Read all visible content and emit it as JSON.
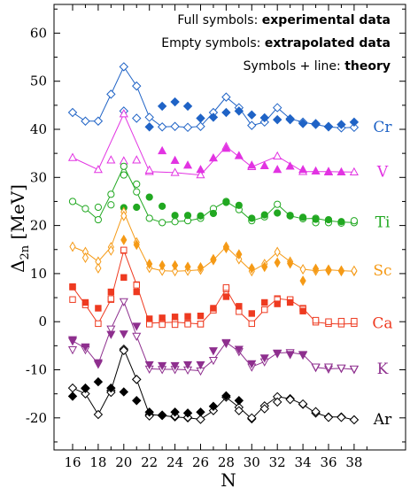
{
  "chart_data": {
    "type": "line",
    "xlabel": "N",
    "ylabel": "Δ",
    "ylabel_sub": "2n",
    "ylabel_unit": " [MeV]",
    "xlim": [
      15,
      39.5
    ],
    "ylim": [
      -25,
      65
    ],
    "xticks": [
      16,
      18,
      20,
      22,
      24,
      26,
      28,
      30,
      32,
      34,
      36,
      38
    ],
    "yticks": [
      -20,
      -10,
      0,
      10,
      20,
      30,
      40,
      50,
      60
    ],
    "legend": {
      "line1_normal": "Full symbols: ",
      "line1_bold": "experimental data",
      "line2_normal": "Empty symbols: ",
      "line2_bold": "extrapolated data",
      "line3_normal": "Symbols + line: ",
      "line3_bold": "theory"
    },
    "series": [
      {
        "name": "Cr",
        "color": "#1f63c6",
        "marker": "diamond",
        "theory": {
          "x": [
            16,
            17,
            18,
            19,
            20,
            21,
            22,
            23,
            24,
            25,
            26,
            27,
            28,
            29,
            30,
            31,
            32,
            33,
            34,
            35,
            36,
            37,
            38
          ],
          "y": [
            43.5,
            41.7,
            41.7,
            47.3,
            53,
            49,
            42.5,
            40.5,
            40.6,
            40.4,
            40.6,
            43.5,
            46.7,
            44.5,
            40.8,
            41.5,
            44.5,
            42.2,
            41.5,
            41,
            40.5,
            40.3,
            40.4
          ]
        },
        "experimental": {
          "x": [
            22,
            23,
            24,
            25,
            26,
            27,
            28,
            29,
            30,
            31,
            32,
            33,
            34,
            35,
            36,
            37,
            38
          ],
          "y": [
            40.5,
            44.8,
            45.7,
            44.8,
            42.3,
            42.5,
            43.5,
            43.8,
            43,
            42.4,
            42,
            42,
            41.2,
            41.2,
            40.6,
            41,
            41.5
          ]
        },
        "extrapolated": {
          "x": [
            20,
            21
          ],
          "y": [
            43.8,
            42.3
          ]
        }
      },
      {
        "name": "V",
        "color": "#e233e2",
        "marker": "triangle-up",
        "theory": {
          "x": [
            16,
            18,
            20,
            22,
            24,
            26,
            28,
            30,
            32,
            34,
            36,
            38
          ],
          "y": [
            34.1,
            31.6,
            43.2,
            31.2,
            31,
            30.5,
            36.4,
            32.2,
            34.4,
            31.2,
            31.2,
            31.1
          ]
        },
        "experimental": {
          "x": [
            23,
            24,
            25,
            26,
            27,
            28,
            29,
            30,
            31,
            32,
            33,
            34,
            35,
            36,
            37
          ],
          "y": [
            35.5,
            33.5,
            32.5,
            31.6,
            34,
            36,
            34.5,
            32.5,
            32.4,
            31.6,
            32.3,
            31.6,
            31.3,
            31.1,
            31.1
          ]
        },
        "extrapolated": {
          "x": [
            19,
            20,
            21,
            22
          ],
          "y": [
            33.6,
            33.4,
            33.6,
            31.5
          ]
        }
      },
      {
        "name": "Ti",
        "color": "#21a821",
        "marker": "circle",
        "theory": {
          "x": [
            16,
            17,
            18,
            19,
            20,
            21,
            22,
            23,
            24,
            25,
            26,
            27,
            28,
            29,
            30,
            31,
            32,
            33,
            34,
            35,
            36,
            37,
            38
          ],
          "y": [
            25,
            23.5,
            21.2,
            26.5,
            32.3,
            27,
            21.5,
            20.6,
            20.8,
            21,
            21.5,
            23.5,
            25,
            23.3,
            21,
            21.8,
            24.4,
            22,
            21.4,
            21.5,
            21,
            20.7,
            20.6
          ]
        },
        "experimental": {
          "x": [
            20,
            21,
            22,
            23,
            24,
            25,
            26,
            27,
            28,
            29,
            30,
            31,
            32,
            33,
            34,
            35,
            36,
            37
          ],
          "y": [
            23.7,
            23.8,
            25.9,
            24,
            22.1,
            22.1,
            22,
            22.5,
            24.8,
            24.2,
            21.5,
            22.2,
            22.6,
            22.1,
            21.7,
            21.3,
            21.2,
            20.8
          ]
        },
        "extrapolated": {
          "x": [
            18,
            19,
            20,
            21,
            35,
            36,
            37,
            38
          ],
          "y": [
            23.8,
            24.3,
            30.5,
            28.6,
            20.6,
            20.6,
            20.5,
            21.0
          ]
        }
      },
      {
        "name": "Sc",
        "color": "#f59a16",
        "marker": "diamond-narrow",
        "theory": {
          "x": [
            16,
            17,
            18,
            19,
            20,
            21,
            22,
            23,
            24,
            25,
            26,
            27,
            28,
            29,
            30,
            31,
            32,
            33,
            34,
            35,
            36,
            37,
            38
          ],
          "y": [
            15.6,
            14.5,
            12.5,
            15.5,
            22.8,
            16.5,
            11.2,
            10.6,
            10.5,
            10.6,
            10.8,
            12.8,
            15.6,
            13,
            10.5,
            12,
            14.5,
            12.5,
            10.9,
            10.6,
            10.8,
            10.6,
            10.5
          ]
        },
        "experimental": {
          "x": [
            20,
            21,
            22,
            23,
            24,
            25,
            26,
            27,
            28,
            29,
            30,
            31,
            32,
            33,
            34,
            35,
            36,
            37
          ],
          "y": [
            17,
            16,
            12,
            11.7,
            11.7,
            11.4,
            11.3,
            13,
            15.3,
            14,
            11.1,
            11.4,
            12.3,
            12.1,
            8.5,
            11,
            10.8,
            10.5
          ]
        },
        "extrapolated": {
          "x": [
            17,
            18,
            19,
            20,
            36,
            37,
            38
          ],
          "y": [
            13.3,
            11.1,
            14.8,
            22,
            10.6,
            10.6,
            10.6
          ]
        }
      },
      {
        "name": "Ca",
        "color": "#ee3a20",
        "marker": "square",
        "theory": {
          "x": [
            16,
            17,
            18,
            19,
            20,
            21,
            22,
            23,
            24,
            25,
            26,
            27,
            28,
            29,
            30,
            31,
            32,
            33,
            34,
            35,
            36,
            37,
            38
          ],
          "y": [
            7.2,
            3.5,
            -0.4,
            4.6,
            14.8,
            7.7,
            -0.3,
            -0.2,
            -0.1,
            -0.3,
            -0.5,
            2.4,
            6.8,
            2.1,
            -0.4,
            2.5,
            4.8,
            4.5,
            2.8,
            -0.1,
            -0.4,
            -0.5,
            -0.4
          ]
        },
        "experimental": {
          "x": [
            16,
            17,
            18,
            19,
            20,
            21,
            22,
            23,
            24,
            25,
            26,
            27,
            28,
            29,
            30,
            31,
            32,
            33,
            34
          ],
          "y": [
            7.3,
            4,
            2.8,
            6.2,
            9.2,
            6.2,
            0.6,
            0.8,
            1,
            1.1,
            1.2,
            2.8,
            5.2,
            3.2,
            1.7,
            4,
            3.7,
            4,
            2.2
          ]
        },
        "extrapolated": {
          "x": [
            16,
            19,
            20,
            21,
            22,
            23,
            24,
            25,
            26,
            28,
            32,
            33,
            34,
            35,
            36,
            37,
            38
          ],
          "y": [
            4.6,
            4.8,
            14.9,
            7.6,
            -0.5,
            -0.6,
            -0.6,
            -0.5,
            -0.5,
            7.1,
            4.6,
            4.6,
            2.6,
            0.3,
            0,
            0.1,
            0.1
          ]
        }
      },
      {
        "name": "K",
        "color": "#8e2f8e",
        "marker": "triangle-down",
        "theory": {
          "x": [
            16,
            17,
            18,
            19,
            20,
            21,
            22,
            23,
            24,
            25,
            26,
            27,
            28,
            29,
            30,
            31,
            32,
            33,
            34,
            35,
            36,
            37,
            38
          ],
          "y": [
            -4,
            -5.5,
            -8.8,
            -1.5,
            4.2,
            -3,
            -9.8,
            -9.9,
            -9.9,
            -10,
            -10.2,
            -8,
            -4.3,
            -6.2,
            -9.4,
            -8.3,
            -6.5,
            -6.4,
            -6.8,
            -9.5,
            -9.8,
            -9.7,
            -9.9
          ]
        },
        "experimental": {
          "x": [
            16,
            17,
            18,
            19,
            20,
            21,
            22,
            23,
            24,
            25,
            26,
            27,
            28,
            29,
            30,
            31,
            32,
            33,
            34
          ],
          "y": [
            -3.7,
            -5.2,
            -8.5,
            -2.6,
            -2.5,
            -0.9,
            -8.9,
            -9.1,
            -9.1,
            -8.9,
            -8.9,
            -6,
            -4.5,
            -5.7,
            -8.7,
            -7.5,
            -6.6,
            -6.8,
            -6.9
          ]
        },
        "extrapolated": {
          "x": [
            16,
            17,
            35,
            36,
            37,
            38
          ],
          "y": [
            -5.8,
            -5.8,
            -9.4,
            -9.4,
            -9.6,
            -9.8
          ]
        }
      },
      {
        "name": "Ar",
        "color": "#000000",
        "marker": "diamond",
        "theory": {
          "x": [
            16,
            17,
            18,
            19,
            20,
            21,
            22,
            23,
            24,
            25,
            26,
            27,
            28,
            29,
            30,
            31,
            32,
            33,
            34,
            35,
            36,
            37,
            38
          ],
          "y": [
            -13.8,
            -15,
            -19.3,
            -14.3,
            -5.7,
            -12,
            -19.3,
            -19.5,
            -19.8,
            -20,
            -20.3,
            -18.5,
            -15.7,
            -17.8,
            -20.2,
            -17.5,
            -15.6,
            -16,
            -17.2,
            -19,
            -19.8,
            -19.8,
            -20.4
          ]
        },
        "experimental": {
          "x": [
            16,
            17,
            18,
            19,
            20,
            21,
            22,
            23,
            24,
            25,
            26,
            27,
            28,
            29
          ],
          "y": [
            -15.5,
            -13.8,
            -12.5,
            -13.8,
            -14.6,
            -16.4,
            -18.8,
            -19.4,
            -18.8,
            -19,
            -18.8,
            -17.6,
            -15.4,
            -16.4
          ]
        },
        "extrapolated": {
          "x": [
            17,
            19,
            20,
            21,
            22,
            23,
            24,
            25,
            26,
            29,
            30,
            31,
            32,
            33,
            34,
            35,
            36,
            37,
            38
          ],
          "y": [
            -13.9,
            -14.7,
            -6,
            -12,
            -19.6,
            -19.5,
            -19.6,
            -19.9,
            -20.3,
            -18.5,
            -20,
            -18.1,
            -16.7,
            -16.2,
            -17.1,
            -18.7,
            -19.9,
            -19.9,
            -20.4
          ]
        }
      }
    ]
  }
}
